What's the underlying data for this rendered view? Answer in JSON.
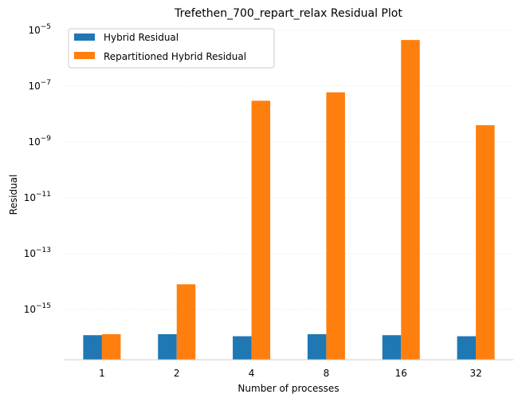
{
  "chart_data": {
    "type": "bar",
    "title": "Trefethen_700_repart_relax Residual Plot",
    "xlabel": "Number of processes",
    "ylabel": "Residual",
    "yscale": "log",
    "ylim": [
      5e-17,
      1e-05
    ],
    "grid": true,
    "legend_position": "top-left",
    "categories": [
      "1",
      "2",
      "4",
      "8",
      "16",
      "32"
    ],
    "y_ticks": [
      {
        "value": 1e-05,
        "base": "10",
        "exp": "−5"
      },
      {
        "value": 1e-07,
        "base": "10",
        "exp": "−7"
      },
      {
        "value": 1e-09,
        "base": "10",
        "exp": "−9"
      },
      {
        "value": 1e-11,
        "base": "10",
        "exp": "−11"
      },
      {
        "value": 1e-13,
        "base": "10",
        "exp": "−13"
      },
      {
        "value": 1e-15,
        "base": "10",
        "exp": "−15"
      }
    ],
    "series": [
      {
        "name": "Hybrid Residual",
        "color": "#1f77b4",
        "values": [
          1.2e-16,
          1.3e-16,
          1.1e-16,
          1.3e-16,
          1.2e-16,
          1.1e-16
        ]
      },
      {
        "name": "Repartitioned Hybrid Residual",
        "color": "#ff7f0e",
        "values": [
          1.3e-16,
          8e-15,
          3e-08,
          6e-08,
          4.5e-06,
          4e-09
        ]
      }
    ]
  }
}
